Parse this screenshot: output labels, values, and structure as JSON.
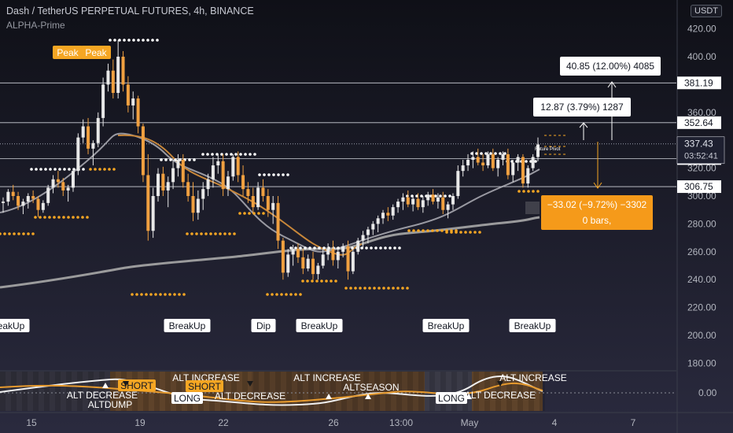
{
  "header": {
    "title": "Dash / TetherUS PERPETUAL FUTURES, 4h, BINANCE",
    "indicator": "ALPHA-Prime",
    "currency_button": "USDT"
  },
  "colors": {
    "background": "#141420",
    "bull": "#e8e8e8",
    "bear": "#f0a040",
    "orange": "#f5a623",
    "grey_ma": "#a9a9a9",
    "brown_ma": "#c8873a",
    "label_bg": "#ffffff"
  },
  "chart_data": {
    "type": "candlestick",
    "y_ticks": [
      "420.00",
      "400.00",
      "380.00",
      "360.00",
      "340.00",
      "320.00",
      "300.00",
      "280.00",
      "260.00",
      "240.00",
      "220.00",
      "200.00",
      "180.00"
    ],
    "x_ticks": [
      "15",
      "19",
      "22",
      "26",
      "13:00",
      "May",
      "4",
      "7"
    ],
    "ylim": [
      168,
      432
    ],
    "horizontal_lines": [
      {
        "value": 381.19,
        "label": "381.19"
      },
      {
        "value": 352.64,
        "label": "352.64"
      },
      {
        "value": 326.9,
        "label": "326.90"
      },
      {
        "value": 306.75,
        "label": "306.75"
      }
    ],
    "current_price": {
      "value": 337.43,
      "label": "337.43",
      "countdown": "03:52:41"
    },
    "candles": [
      [
        295,
        299,
        288,
        296
      ],
      [
        296,
        305,
        293,
        303
      ],
      [
        303,
        308,
        297,
        300
      ],
      [
        300,
        303,
        290,
        293
      ],
      [
        293,
        298,
        287,
        296
      ],
      [
        296,
        302,
        291,
        300
      ],
      [
        300,
        304,
        295,
        298
      ],
      [
        298,
        300,
        285,
        290
      ],
      [
        290,
        297,
        288,
        295
      ],
      [
        295,
        308,
        293,
        306
      ],
      [
        306,
        315,
        302,
        312
      ],
      [
        312,
        318,
        306,
        310
      ],
      [
        310,
        313,
        300,
        304
      ],
      [
        304,
        308,
        296,
        306
      ],
      [
        306,
        320,
        303,
        318
      ],
      [
        318,
        345,
        315,
        342
      ],
      [
        342,
        355,
        338,
        350
      ],
      [
        350,
        356,
        330,
        334
      ],
      [
        334,
        340,
        322,
        338
      ],
      [
        338,
        360,
        335,
        356
      ],
      [
        356,
        385,
        350,
        380
      ],
      [
        380,
        395,
        375,
        390
      ],
      [
        390,
        398,
        370,
        374
      ],
      [
        374,
        412,
        370,
        400
      ],
      [
        400,
        404,
        375,
        380
      ],
      [
        380,
        386,
        360,
        365
      ],
      [
        365,
        375,
        355,
        370
      ],
      [
        370,
        372,
        345,
        350
      ],
      [
        350,
        352,
        310,
        315
      ],
      [
        315,
        330,
        268,
        275
      ],
      [
        275,
        306,
        270,
        300
      ],
      [
        300,
        320,
        296,
        316
      ],
      [
        316,
        321,
        300,
        304
      ],
      [
        304,
        314,
        292,
        310
      ],
      [
        310,
        326,
        305,
        320
      ],
      [
        320,
        330,
        314,
        326
      ],
      [
        326,
        330,
        306,
        310
      ],
      [
        310,
        316,
        296,
        300
      ],
      [
        300,
        310,
        282,
        288
      ],
      [
        288,
        304,
        283,
        298
      ],
      [
        298,
        310,
        290,
        305
      ],
      [
        305,
        316,
        300,
        312
      ],
      [
        312,
        328,
        306,
        322
      ],
      [
        322,
        330,
        316,
        325
      ],
      [
        325,
        330,
        300,
        305
      ],
      [
        305,
        318,
        300,
        314
      ],
      [
        314,
        330,
        311,
        328
      ],
      [
        328,
        332,
        310,
        315
      ],
      [
        315,
        322,
        300,
        305
      ],
      [
        305,
        310,
        295,
        300
      ],
      [
        300,
        306,
        288,
        292
      ],
      [
        292,
        310,
        290,
        306
      ],
      [
        306,
        312,
        296,
        300
      ],
      [
        300,
        305,
        285,
        290
      ],
      [
        290,
        300,
        280,
        295
      ],
      [
        295,
        300,
        262,
        268
      ],
      [
        268,
        270,
        240,
        245
      ],
      [
        245,
        262,
        242,
        258
      ],
      [
        258,
        265,
        250,
        262
      ],
      [
        262,
        266,
        252,
        256
      ],
      [
        256,
        262,
        244,
        248
      ],
      [
        248,
        258,
        246,
        255
      ],
      [
        255,
        260,
        240,
        244
      ],
      [
        244,
        252,
        240,
        250
      ],
      [
        250,
        262,
        248,
        258
      ],
      [
        258,
        266,
        254,
        262
      ],
      [
        262,
        268,
        250,
        254
      ],
      [
        254,
        262,
        248,
        260
      ],
      [
        260,
        266,
        256,
        264
      ],
      [
        264,
        268,
        240,
        246
      ],
      [
        246,
        262,
        244,
        260
      ],
      [
        260,
        270,
        258,
        268
      ],
      [
        268,
        275,
        262,
        272
      ],
      [
        272,
        278,
        266,
        276
      ],
      [
        276,
        282,
        272,
        280
      ],
      [
        280,
        286,
        274,
        284
      ],
      [
        284,
        290,
        280,
        288
      ],
      [
        288,
        292,
        282,
        286
      ],
      [
        286,
        294,
        283,
        292
      ],
      [
        292,
        298,
        288,
        296
      ],
      [
        296,
        302,
        290,
        299
      ],
      [
        299,
        304,
        292,
        294
      ],
      [
        294,
        300,
        289,
        298
      ],
      [
        298,
        302,
        290,
        292
      ],
      [
        292,
        300,
        288,
        297
      ],
      [
        297,
        303,
        293,
        301
      ],
      [
        301,
        305,
        294,
        296
      ],
      [
        296,
        302,
        291,
        299
      ],
      [
        299,
        303,
        287,
        290
      ],
      [
        290,
        296,
        284,
        294
      ],
      [
        294,
        302,
        290,
        300
      ],
      [
        300,
        322,
        298,
        318
      ],
      [
        318,
        326,
        314,
        322
      ],
      [
        322,
        330,
        318,
        326
      ],
      [
        326,
        332,
        320,
        328
      ],
      [
        328,
        334,
        322,
        324
      ],
      [
        324,
        330,
        318,
        322
      ],
      [
        322,
        332,
        320,
        330
      ],
      [
        330,
        334,
        318,
        320
      ],
      [
        320,
        328,
        314,
        326
      ],
      [
        326,
        332,
        322,
        330
      ],
      [
        330,
        334,
        312,
        315
      ],
      [
        315,
        326,
        310,
        324
      ],
      [
        324,
        330,
        318,
        328
      ],
      [
        328,
        330,
        306,
        309
      ],
      [
        309,
        322,
        306,
        320
      ],
      [
        320,
        330,
        318,
        328
      ],
      [
        328,
        342,
        325,
        337
      ]
    ],
    "signal_labels": [
      {
        "text": "Peak",
        "style": "orange"
      },
      {
        "text": "Peak",
        "style": "orange"
      },
      {
        "text": "BreakUp",
        "style": "white"
      },
      {
        "text": "BreakUp",
        "style": "white"
      },
      {
        "text": "Dip",
        "style": "white"
      },
      {
        "text": "BreakUp",
        "style": "white"
      },
      {
        "text": "BreakUp",
        "style": "white"
      },
      {
        "text": "BreakUp",
        "style": "white"
      }
    ],
    "measure_boxes": [
      {
        "text": "40.85 (12.00%) 4085",
        "style": "white"
      },
      {
        "text": "12.87 (3.79%) 1287",
        "style": "white"
      },
      {
        "text": "−33.02 (−9.72%) −3302",
        "text2": "0 bars,",
        "style": "orange"
      }
    ],
    "future_pivot_label": "Future Pivot",
    "sub_panel": {
      "y_label": "0.00",
      "labels": [
        {
          "text": "ALT INCREASE",
          "style": "plain"
        },
        {
          "text": "ALT INCREASE",
          "style": "plain"
        },
        {
          "text": "ALT INCREASE",
          "style": "plain"
        },
        {
          "text": "SHORT",
          "style": "orange"
        },
        {
          "text": "SHORT",
          "style": "orange"
        },
        {
          "text": "ALT DECREASE",
          "style": "plain"
        },
        {
          "text": "ALT DECREASE",
          "style": "plain"
        },
        {
          "text": "ALT DECREASE",
          "style": "plain"
        },
        {
          "text": "ALTDUMP",
          "style": "plain"
        },
        {
          "text": "ALTSEASON",
          "style": "plain"
        },
        {
          "text": "LONG",
          "style": "white"
        },
        {
          "text": "LONG",
          "style": "white"
        }
      ]
    }
  }
}
